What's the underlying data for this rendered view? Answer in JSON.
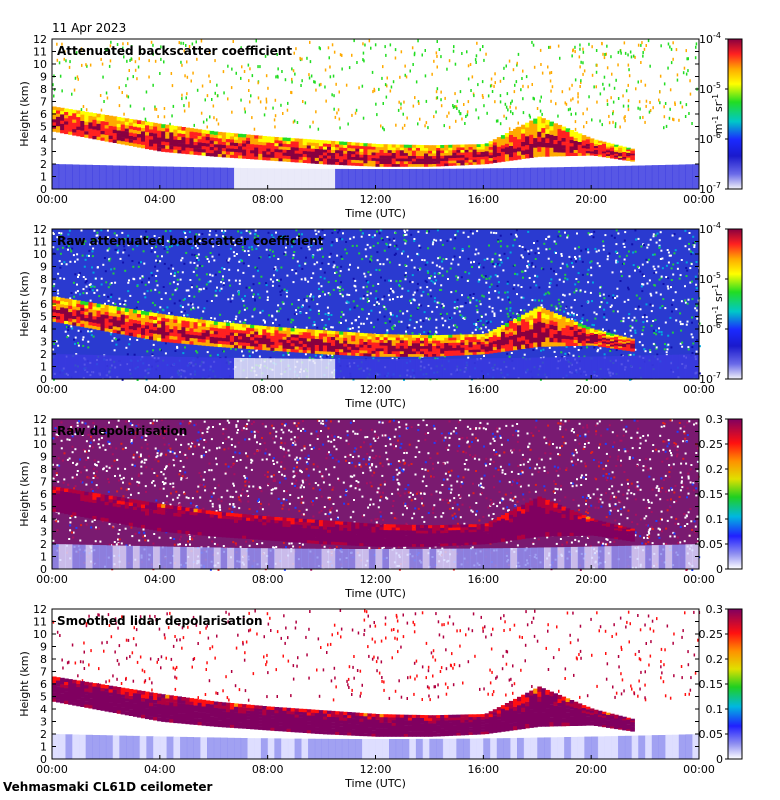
{
  "header": {
    "date": "11 Apr 2023"
  },
  "footer": {
    "instrument": "Vehmasmaki CL61D ceilometer"
  },
  "chart_data": [
    {
      "type": "heatmap",
      "title": "Attenuated backscatter coefficient",
      "xlabel": "Time (UTC)",
      "ylabel": "Height (km)",
      "x_ticks": [
        "00:00",
        "04:00",
        "08:00",
        "12:00",
        "16:00",
        "20:00",
        "00:00"
      ],
      "x_range_hours": [
        0,
        24
      ],
      "y_ticks": [
        0,
        1,
        2,
        3,
        4,
        5,
        6,
        7,
        8,
        9,
        10,
        11,
        12
      ],
      "ylim": [
        0,
        12
      ],
      "colorbar": {
        "scale": "log",
        "ticks": [
          "10^-7",
          "10^-6",
          "10^-5",
          "10^-4"
        ],
        "label_base": "m",
        "label_exp1": "-1",
        "label_mid": " sr",
        "label_exp2": "-1"
      },
      "cloud_layer": [
        {
          "t": 0,
          "top": 6.6,
          "base": 4.6
        },
        {
          "t": 2,
          "top": 5.9,
          "base": 3.8
        },
        {
          "t": 4,
          "top": 5.2,
          "base": 3.0
        },
        {
          "t": 6,
          "top": 4.6,
          "base": 2.6
        },
        {
          "t": 8,
          "top": 4.2,
          "base": 2.3
        },
        {
          "t": 10,
          "top": 3.9,
          "base": 2.0
        },
        {
          "t": 12,
          "top": 3.6,
          "base": 1.8
        },
        {
          "t": 14,
          "top": 3.5,
          "base": 1.8
        },
        {
          "t": 16,
          "top": 3.6,
          "base": 2.0
        },
        {
          "t": 18,
          "top": 5.8,
          "base": 2.6
        },
        {
          "t": 20,
          "top": 4.0,
          "base": 2.7
        },
        {
          "t": 21.5,
          "top": 3.2,
          "base": 2.2
        }
      ]
    },
    {
      "type": "heatmap",
      "title": "Raw attenuated backscatter coefficient",
      "xlabel": "Time (UTC)",
      "ylabel": "Height (km)",
      "x_ticks": [
        "00:00",
        "04:00",
        "08:00",
        "12:00",
        "16:00",
        "20:00",
        "00:00"
      ],
      "x_range_hours": [
        0,
        24
      ],
      "y_ticks": [
        0,
        1,
        2,
        3,
        4,
        5,
        6,
        7,
        8,
        9,
        10,
        11,
        12
      ],
      "ylim": [
        0,
        12
      ],
      "colorbar": {
        "scale": "log",
        "ticks": [
          "10^-7",
          "10^-6",
          "10^-5",
          "10^-4"
        ],
        "label_base": "m",
        "label_exp1": "-1",
        "label_mid": " sr",
        "label_exp2": "-1"
      }
    },
    {
      "type": "heatmap",
      "title": "Raw depolarisation",
      "xlabel": "Time (UTC)",
      "ylabel": "Height (km)",
      "x_ticks": [
        "00:00",
        "04:00",
        "08:00",
        "12:00",
        "16:00",
        "20:00",
        "00:00"
      ],
      "x_range_hours": [
        0,
        24
      ],
      "y_ticks": [
        0,
        1,
        2,
        3,
        4,
        5,
        6,
        7,
        8,
        9,
        10,
        11,
        12
      ],
      "ylim": [
        0,
        12
      ],
      "colorbar": {
        "scale": "linear",
        "range": [
          0,
          0.3
        ],
        "ticks": [
          "0",
          "0.05",
          "0.1",
          "0.15",
          "0.2",
          "0.25",
          "0.3"
        ]
      }
    },
    {
      "type": "heatmap",
      "title": "Smoothed lidar depolarisation",
      "xlabel": "Time (UTC)",
      "ylabel": "Height (km)",
      "x_ticks": [
        "00:00",
        "04:00",
        "08:00",
        "12:00",
        "16:00",
        "20:00",
        "00:00"
      ],
      "x_range_hours": [
        0,
        24
      ],
      "y_ticks": [
        0,
        1,
        2,
        3,
        4,
        5,
        6,
        7,
        8,
        9,
        10,
        11,
        12
      ],
      "ylim": [
        0,
        12
      ],
      "colorbar": {
        "scale": "linear",
        "range": [
          0,
          0.3
        ],
        "ticks": [
          "0",
          "0.05",
          "0.1",
          "0.15",
          "0.2",
          "0.25",
          "0.3"
        ]
      }
    }
  ]
}
